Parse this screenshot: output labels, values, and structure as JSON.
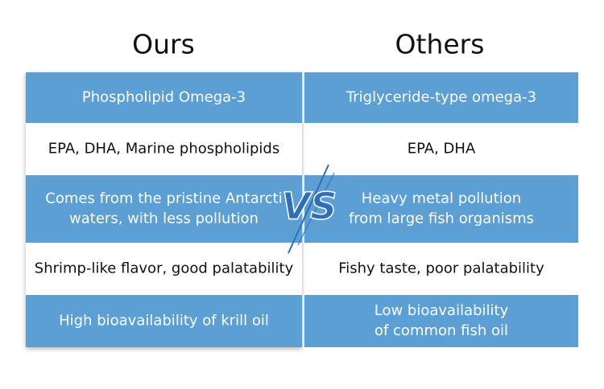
{
  "header": {
    "left": "Ours",
    "right": "Others"
  },
  "vs_label": "VS",
  "table": {
    "rows": [
      {
        "ours": [
          "Phospholipid Omega-3"
        ],
        "others": [
          "Triglyceride-type omega-3"
        ]
      },
      {
        "ours": [
          "EPA, DHA, Marine phospholipids"
        ],
        "others": [
          "EPA, DHA"
        ]
      },
      {
        "ours": [
          "Comes from the pristine Antarcti",
          "waters, with less pollution"
        ],
        "others": [
          "Heavy metal pollution",
          "from large fish organisms"
        ]
      },
      {
        "ours": [
          "Shrimp-like flavor, good palatability"
        ],
        "others": [
          "Fishy taste, poor palatability"
        ]
      },
      {
        "ours": [
          "High bioavailability of krill oil"
        ],
        "others": [
          "Low bioavailability",
          "of common fish oil"
        ]
      }
    ]
  }
}
